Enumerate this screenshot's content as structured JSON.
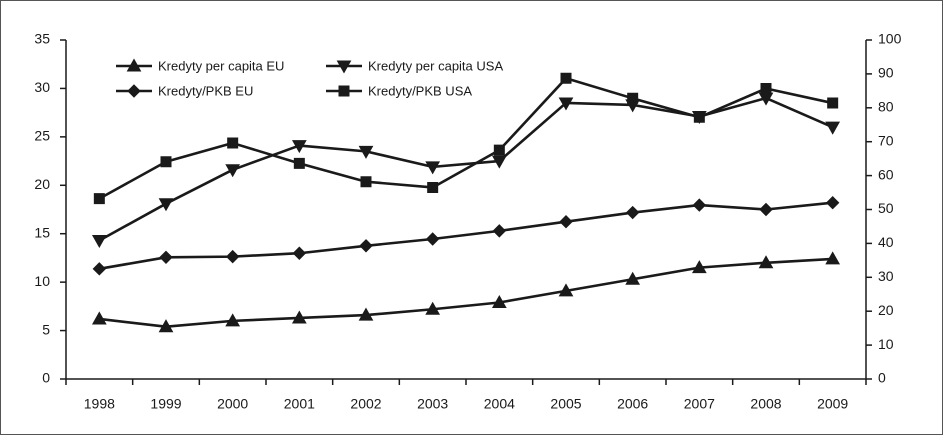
{
  "chart_data": {
    "type": "line",
    "title": "",
    "xlabel": "",
    "ylabel": "",
    "x": [
      "1998",
      "1999",
      "2000",
      "2001",
      "2002",
      "2003",
      "2004",
      "2005",
      "2006",
      "2007",
      "2008",
      "2009"
    ],
    "y_left": {
      "min": 0,
      "max": 35,
      "step": 5,
      "ticks": [
        "0",
        "5",
        "10",
        "15",
        "20",
        "25",
        "30",
        "35"
      ]
    },
    "y_right": {
      "min": 0,
      "max": 100,
      "step": 10,
      "ticks": [
        "0",
        "10",
        "20",
        "30",
        "40",
        "50",
        "60",
        "70",
        "80",
        "90",
        "100"
      ]
    },
    "grid": false,
    "legend_position": "top-left",
    "series": [
      {
        "name": "Kredyty per capita EU",
        "marker": "triangle-up",
        "axis": "left",
        "values": [
          6.2,
          5.4,
          6.0,
          6.3,
          6.6,
          7.2,
          7.9,
          9.1,
          10.3,
          11.5,
          12.0,
          12.4
        ]
      },
      {
        "name": "Kredyty per capita USA",
        "marker": "triangle-down",
        "axis": "left",
        "values": [
          14.3,
          18.1,
          21.6,
          24.1,
          23.5,
          21.9,
          22.5,
          28.5,
          28.3,
          27.1,
          29.0,
          26.0
        ]
      },
      {
        "name": "Kredyty/PKB EU",
        "marker": "diamond",
        "axis": "right",
        "values": [
          32.5,
          35.9,
          36.1,
          37.1,
          39.3,
          41.3,
          43.7,
          46.4,
          49.1,
          51.3,
          50.0,
          52.0
        ]
      },
      {
        "name": "Kredyty/PKB USA",
        "marker": "square",
        "axis": "right",
        "values": [
          53.2,
          64.1,
          69.6,
          63.6,
          58.2,
          56.5,
          67.5,
          88.7,
          82.8,
          77.2,
          85.7,
          81.4
        ]
      }
    ]
  },
  "colors": {
    "line": "#1a1a1a",
    "axis": "#1a1a1a",
    "frame": "#555555"
  }
}
